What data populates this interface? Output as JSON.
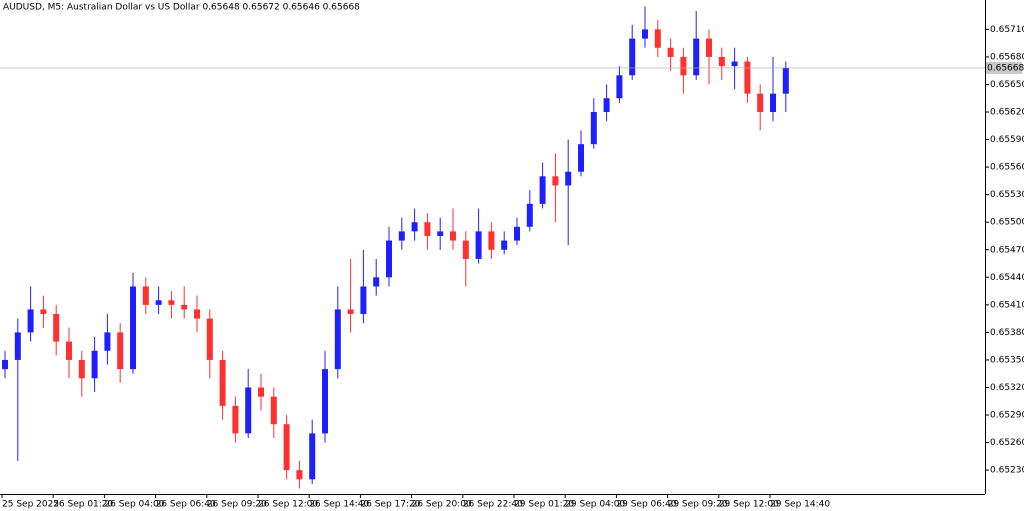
{
  "chart_data": {
    "type": "candlestick",
    "title": "AUDUSD, M5:  Australian Dollar vs US Dollar  0.65648 0.65672 0.65646 0.65668",
    "categories": [
      "25 Sep 2025",
      null,
      null,
      null,
      "26 Sep 01:20",
      null,
      null,
      null,
      "26 Sep 04:00",
      null,
      null,
      null,
      "26 Sep 06:40",
      null,
      null,
      null,
      "26 Sep 09:20",
      null,
      null,
      null,
      "26 Sep 12:00",
      null,
      null,
      null,
      "26 Sep 14:40",
      null,
      null,
      null,
      "26 Sep 17:20",
      null,
      null,
      null,
      "26 Sep 20:00",
      null,
      null,
      null,
      "26 Sep 22:40",
      null,
      null,
      null,
      "29 Sep 01:20",
      null,
      null,
      null,
      "29 Sep 04:00",
      null,
      null,
      null,
      "29 Sep 06:40",
      null,
      null,
      null,
      "29 Sep 09:20",
      null,
      null,
      null,
      "29 Sep 12:00",
      null,
      null,
      null,
      "29 Sep 14:40",
      null
    ],
    "open": [
      0.6534,
      0.6535,
      0.6538,
      0.65405,
      0.654,
      0.6537,
      0.6535,
      0.6533,
      0.6536,
      0.6538,
      0.6534,
      0.6543,
      0.6541,
      0.65415,
      0.6541,
      0.65405,
      0.65395,
      0.6535,
      0.653,
      0.6527,
      0.6532,
      0.6531,
      0.6528,
      0.6523,
      0.6522,
      0.6527,
      0.6534,
      0.65405,
      0.654,
      0.6543,
      0.6544,
      0.6548,
      0.6549,
      0.655,
      0.65485,
      0.6549,
      0.6548,
      0.6546,
      0.6549,
      0.6547,
      0.6548,
      0.65495,
      0.6552,
      0.6555,
      0.6554,
      0.65555,
      0.65585,
      0.6562,
      0.65635,
      0.6566,
      0.657,
      0.6571,
      0.6569,
      0.6568,
      0.6566,
      0.657,
      0.6568,
      0.6567,
      0.65675,
      0.6564,
      0.6562,
      0.6564
    ],
    "high": [
      0.6536,
      0.65395,
      0.6543,
      0.6542,
      0.6541,
      0.65385,
      0.6536,
      0.65375,
      0.654,
      0.6539,
      0.65445,
      0.6544,
      0.6543,
      0.65425,
      0.6543,
      0.6542,
      0.65405,
      0.6536,
      0.6531,
      0.6534,
      0.65335,
      0.6532,
      0.6529,
      0.6524,
      0.65285,
      0.6536,
      0.6543,
      0.6546,
      0.6547,
      0.6546,
      0.65495,
      0.65505,
      0.65515,
      0.6551,
      0.65505,
      0.65515,
      0.6549,
      0.65515,
      0.655,
      0.6549,
      0.65505,
      0.65535,
      0.65565,
      0.65575,
      0.6559,
      0.656,
      0.65635,
      0.6565,
      0.6567,
      0.65715,
      0.65735,
      0.6572,
      0.657,
      0.6569,
      0.6573,
      0.6571,
      0.6569,
      0.6569,
      0.6568,
      0.6565,
      0.6568,
      0.65675
    ],
    "low": [
      0.6533,
      0.6524,
      0.6537,
      0.65385,
      0.65355,
      0.6533,
      0.6531,
      0.65315,
      0.65345,
      0.65325,
      0.65335,
      0.654,
      0.654,
      0.65395,
      0.65395,
      0.6538,
      0.6533,
      0.65285,
      0.6526,
      0.65265,
      0.65295,
      0.65265,
      0.6522,
      0.6521,
      0.65215,
      0.6526,
      0.6533,
      0.6538,
      0.6539,
      0.6542,
      0.6543,
      0.6547,
      0.6548,
      0.6547,
      0.6547,
      0.6547,
      0.6543,
      0.65455,
      0.6546,
      0.65465,
      0.65475,
      0.6549,
      0.65515,
      0.655,
      0.65475,
      0.6555,
      0.6558,
      0.6561,
      0.6563,
      0.65655,
      0.6569,
      0.6568,
      0.65665,
      0.6564,
      0.65655,
      0.6565,
      0.65655,
      0.65645,
      0.6563,
      0.656,
      0.6561,
      0.6562
    ],
    "close": [
      0.6535,
      0.6538,
      0.65405,
      0.654,
      0.6537,
      0.6535,
      0.6533,
      0.6536,
      0.6538,
      0.6534,
      0.6543,
      0.6541,
      0.65415,
      0.6541,
      0.65405,
      0.65395,
      0.6535,
      0.653,
      0.6527,
      0.6532,
      0.6531,
      0.6528,
      0.6523,
      0.6522,
      0.6527,
      0.6534,
      0.65405,
      0.654,
      0.6543,
      0.6544,
      0.6548,
      0.6549,
      0.655,
      0.65485,
      0.6549,
      0.6548,
      0.6546,
      0.6549,
      0.6547,
      0.6548,
      0.65495,
      0.6552,
      0.6555,
      0.6554,
      0.65555,
      0.65585,
      0.6562,
      0.65635,
      0.6566,
      0.657,
      0.6571,
      0.6569,
      0.6568,
      0.6566,
      0.657,
      0.6568,
      0.6567,
      0.65675,
      0.6564,
      0.6562,
      0.6564,
      0.65668
    ],
    "up_color": "#2020ff",
    "down_color": "#ff3030",
    "ylim": [
      0.65204,
      0.65742
    ],
    "yticks": [
      {
        "value": 0.6571,
        "label": "0.65710"
      },
      {
        "value": 0.6568,
        "label": "0.65680"
      },
      {
        "value": 0.6565,
        "label": "0.65650"
      },
      {
        "value": 0.6562,
        "label": "0.65620"
      },
      {
        "value": 0.6559,
        "label": "0.65590"
      },
      {
        "value": 0.6556,
        "label": "0.65560"
      },
      {
        "value": 0.6553,
        "label": "0.65530"
      },
      {
        "value": 0.655,
        "label": "0.65500"
      },
      {
        "value": 0.6547,
        "label": "0.65470"
      },
      {
        "value": 0.6544,
        "label": "0.65440"
      },
      {
        "value": 0.6541,
        "label": "0.65410"
      },
      {
        "value": 0.6538,
        "label": "0.65380"
      },
      {
        "value": 0.6535,
        "label": "0.65350"
      },
      {
        "value": 0.6532,
        "label": "0.65320"
      },
      {
        "value": 0.6529,
        "label": "0.65290"
      },
      {
        "value": 0.6526,
        "label": "0.65260"
      },
      {
        "value": 0.6523,
        "label": "0.65230"
      }
    ],
    "last_price": {
      "value": 0.65668,
      "label": "0.65668"
    }
  }
}
